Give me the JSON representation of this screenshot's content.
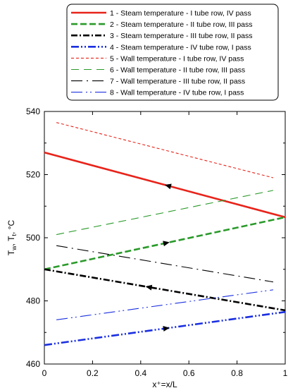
{
  "chart_data": {
    "type": "line",
    "title": "",
    "xlabel": "x⁺=x/L",
    "ylabel": "Tw, Tt, °C",
    "ylabel_parts": {
      "t1": "T",
      "s1": "w",
      "sep": ", T",
      "s2": "t",
      "unit": ", °C"
    },
    "xlim": [
      0,
      1
    ],
    "ylim": [
      460,
      540
    ],
    "xticks": [
      0,
      0.2,
      0.4,
      0.6,
      0.8,
      1
    ],
    "xtick_labels": [
      "0",
      "0.2",
      "0.4",
      "0.6",
      "0.8",
      "1"
    ],
    "yticks": [
      460,
      480,
      500,
      520,
      540
    ],
    "ytick_labels": [
      "460",
      "480",
      "500",
      "520",
      "540"
    ],
    "grid": false,
    "legend_position": "top",
    "series": [
      {
        "name": "1 - Steam temperature - I tube row, IV pass",
        "x": [
          0,
          1
        ],
        "y": [
          527,
          506.5
        ],
        "color": "#e8231a",
        "style": "solid",
        "width": 2.6,
        "arrow": {
          "x": 0.5,
          "dir": "left"
        }
      },
      {
        "name": "2 - Steam temperature - II tube row, III pass",
        "x": [
          0,
          1
        ],
        "y": [
          490,
          506.5
        ],
        "color": "#2a9a2a",
        "style": "dash",
        "width": 2.6,
        "arrow": {
          "x": 0.52,
          "dir": "right"
        }
      },
      {
        "name": "3 - Steam temperature - III tube row, II pass",
        "x": [
          0,
          1
        ],
        "y": [
          490,
          477
        ],
        "color": "#000000",
        "style": "dashdot",
        "width": 2.6,
        "arrow": {
          "x": 0.42,
          "dir": "left"
        }
      },
      {
        "name": "4 - Steam temperature - IV tube row, I pass",
        "x": [
          0,
          1
        ],
        "y": [
          466,
          476.5
        ],
        "color": "#1a2fe0",
        "style": "dashdotdot",
        "width": 2.6,
        "arrow": {
          "x": 0.52,
          "dir": "right"
        }
      },
      {
        "name": "5 - Wall temperature - I tube row, IV pass",
        "x": [
          0.05,
          0.95
        ],
        "y": [
          536.5,
          519
        ],
        "color": "#e8231a",
        "style": "shortdash",
        "width": 1.1
      },
      {
        "name": "6 - Wall temperature - II tube row, III pass",
        "x": [
          0.05,
          0.95
        ],
        "y": [
          501,
          515
        ],
        "color": "#2a9a2a",
        "style": "longdash",
        "width": 1.1
      },
      {
        "name": "7 - Wall temperature - III tube row, II pass",
        "x": [
          0.05,
          0.95
        ],
        "y": [
          497.5,
          486
        ],
        "color": "#000000",
        "style": "longdashdot",
        "width": 1.1
      },
      {
        "name": "8 - Wall temperature - IV tube row, I pass",
        "x": [
          0.05,
          0.95
        ],
        "y": [
          474,
          483.5
        ],
        "color": "#1a2fe0",
        "style": "longdashdotdot",
        "width": 1.1
      }
    ]
  }
}
